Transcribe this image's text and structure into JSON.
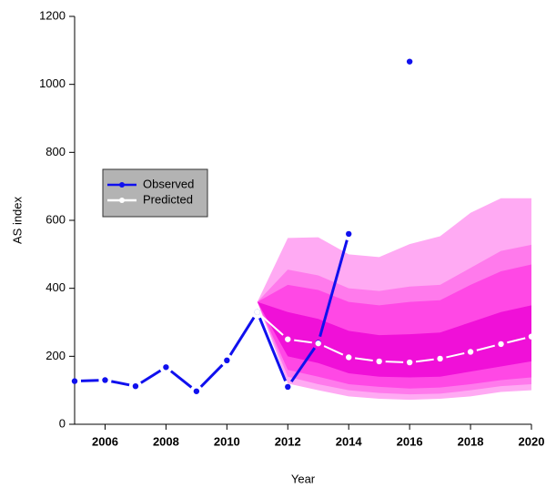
{
  "chart_data": {
    "type": "line",
    "x_label": "Year",
    "y_label": "AS index",
    "x": [
      2005,
      2006,
      2007,
      2008,
      2009,
      2010,
      2011,
      2012,
      2013,
      2014,
      2015,
      2016,
      2017,
      2018,
      2019,
      2020
    ],
    "xlim": [
      2005,
      2020
    ],
    "xticks": [
      2006,
      2008,
      2010,
      2012,
      2014,
      2016,
      2018,
      2020
    ],
    "ylim": [
      0,
      1200
    ],
    "yticks": [
      0,
      200,
      400,
      600,
      800,
      1000,
      1200
    ],
    "legend": "left",
    "series": [
      {
        "name": "Observed",
        "color": "#1010ee",
        "values": [
          127,
          130,
          112,
          168,
          97,
          188,
          330,
          110,
          240,
          560,
          null,
          1067,
          null,
          null,
          null,
          null
        ]
      },
      {
        "name": "Predicted",
        "color": "#ffffff",
        "values": [
          null,
          null,
          null,
          null,
          null,
          null,
          330,
          250,
          238,
          197,
          185,
          182,
          193,
          213,
          236,
          258
        ]
      }
    ],
    "bands": [
      {
        "color": "#ffaaf3",
        "upper": [
          null,
          null,
          null,
          null,
          null,
          null,
          360,
          548,
          550,
          500,
          492,
          530,
          553,
          622,
          665,
          665
        ],
        "lower": [
          null,
          null,
          null,
          null,
          null,
          null,
          360,
          120,
          100,
          82,
          75,
          72,
          75,
          82,
          95,
          100
        ]
      },
      {
        "color": "#ff7aec",
        "upper": [
          null,
          null,
          null,
          null,
          null,
          null,
          360,
          455,
          438,
          400,
          392,
          405,
          410,
          460,
          510,
          528
        ],
        "lower": [
          null,
          null,
          null,
          null,
          null,
          null,
          360,
          140,
          118,
          100,
          92,
          88,
          90,
          100,
          112,
          118
        ]
      },
      {
        "color": "#ff48e5",
        "upper": [
          null,
          null,
          null,
          null,
          null,
          null,
          360,
          410,
          395,
          360,
          350,
          360,
          365,
          410,
          450,
          470
        ],
        "lower": [
          null,
          null,
          null,
          null,
          null,
          null,
          360,
          160,
          140,
          118,
          110,
          105,
          108,
          118,
          130,
          138
        ]
      },
      {
        "color": "#f010d8",
        "upper": [
          null,
          null,
          null,
          null,
          null,
          null,
          360,
          330,
          310,
          275,
          262,
          265,
          270,
          300,
          330,
          350
        ],
        "lower": [
          null,
          null,
          null,
          null,
          null,
          null,
          360,
          200,
          180,
          150,
          140,
          138,
          140,
          155,
          170,
          185
        ]
      }
    ]
  }
}
